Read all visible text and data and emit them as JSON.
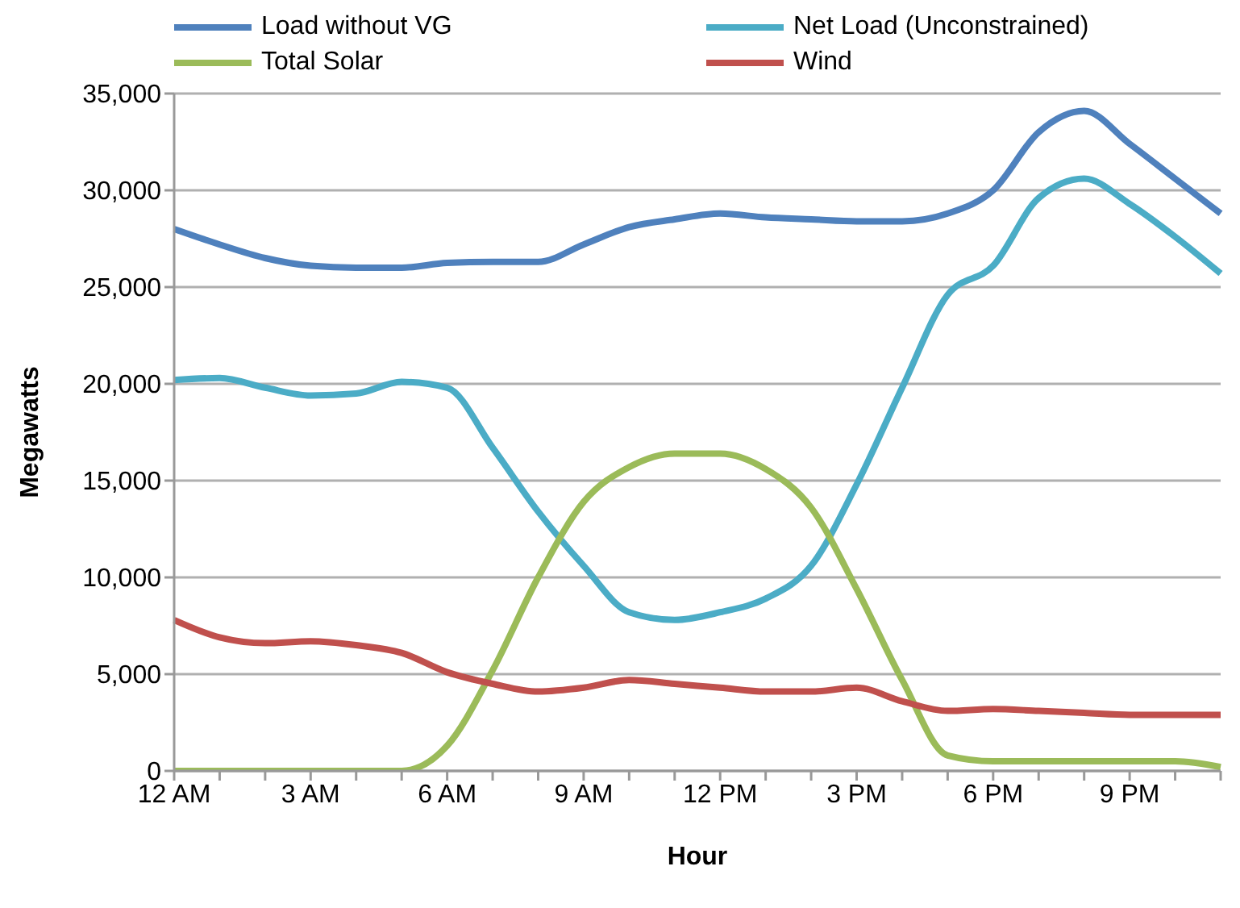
{
  "chart_data": {
    "type": "line",
    "xlabel": "Hour",
    "ylabel": "Megawatts",
    "categories": [
      "12 AM",
      null,
      null,
      "3 AM",
      null,
      null,
      "6 AM",
      null,
      null,
      "9 AM",
      null,
      null,
      "12 PM",
      null,
      null,
      "3 PM",
      null,
      null,
      "6 PM",
      null,
      null,
      "9 PM",
      null,
      null
    ],
    "series": [
      {
        "name": "Load without VG",
        "color": "#4f81bd",
        "values": [
          28000,
          27200,
          26500,
          26100,
          26000,
          26000,
          26250,
          26300,
          26300,
          27200,
          28100,
          28500,
          28800,
          28600,
          28500,
          28400,
          28400,
          28800,
          30000,
          33000,
          34100,
          32400,
          30600,
          28800
        ]
      },
      {
        "name": "Net Load (Unconstrained)",
        "color": "#4bacc6",
        "values": [
          20200,
          20300,
          19800,
          19400,
          19500,
          20100,
          19800,
          16700,
          13400,
          10600,
          8200,
          7800,
          8200,
          8900,
          10600,
          14800,
          19800,
          24600,
          26100,
          29600,
          30600,
          29300,
          27600,
          25700
        ]
      },
      {
        "name": "Total Solar",
        "color": "#9bbb59",
        "values": [
          0,
          0,
          0,
          0,
          0,
          0,
          1300,
          5200,
          10000,
          13900,
          15700,
          16400,
          16400,
          15600,
          13600,
          9400,
          4700,
          800,
          500,
          500,
          500,
          500,
          500,
          200
        ]
      },
      {
        "name": "Wind",
        "color": "#c0504d",
        "values": [
          7800,
          6900,
          6600,
          6700,
          6500,
          6100,
          5100,
          4500,
          4100,
          4300,
          4700,
          4500,
          4300,
          4100,
          4100,
          4300,
          3600,
          3100,
          3200,
          3100,
          3000,
          2900,
          2900,
          2900
        ]
      }
    ],
    "ylim": [
      0,
      35000
    ],
    "yticks": [
      {
        "value": 0,
        "label": "0"
      },
      {
        "value": 5000,
        "label": "5,000"
      },
      {
        "value": 10000,
        "label": "10,000"
      },
      {
        "value": 15000,
        "label": "15,000"
      },
      {
        "value": 20000,
        "label": "20,000"
      },
      {
        "value": 25000,
        "label": "25,000"
      },
      {
        "value": 30000,
        "label": "30,000"
      },
      {
        "value": 35000,
        "label": "35,000"
      }
    ],
    "grid": "y",
    "legend": "top",
    "marker": "none",
    "line_style": "solid"
  }
}
